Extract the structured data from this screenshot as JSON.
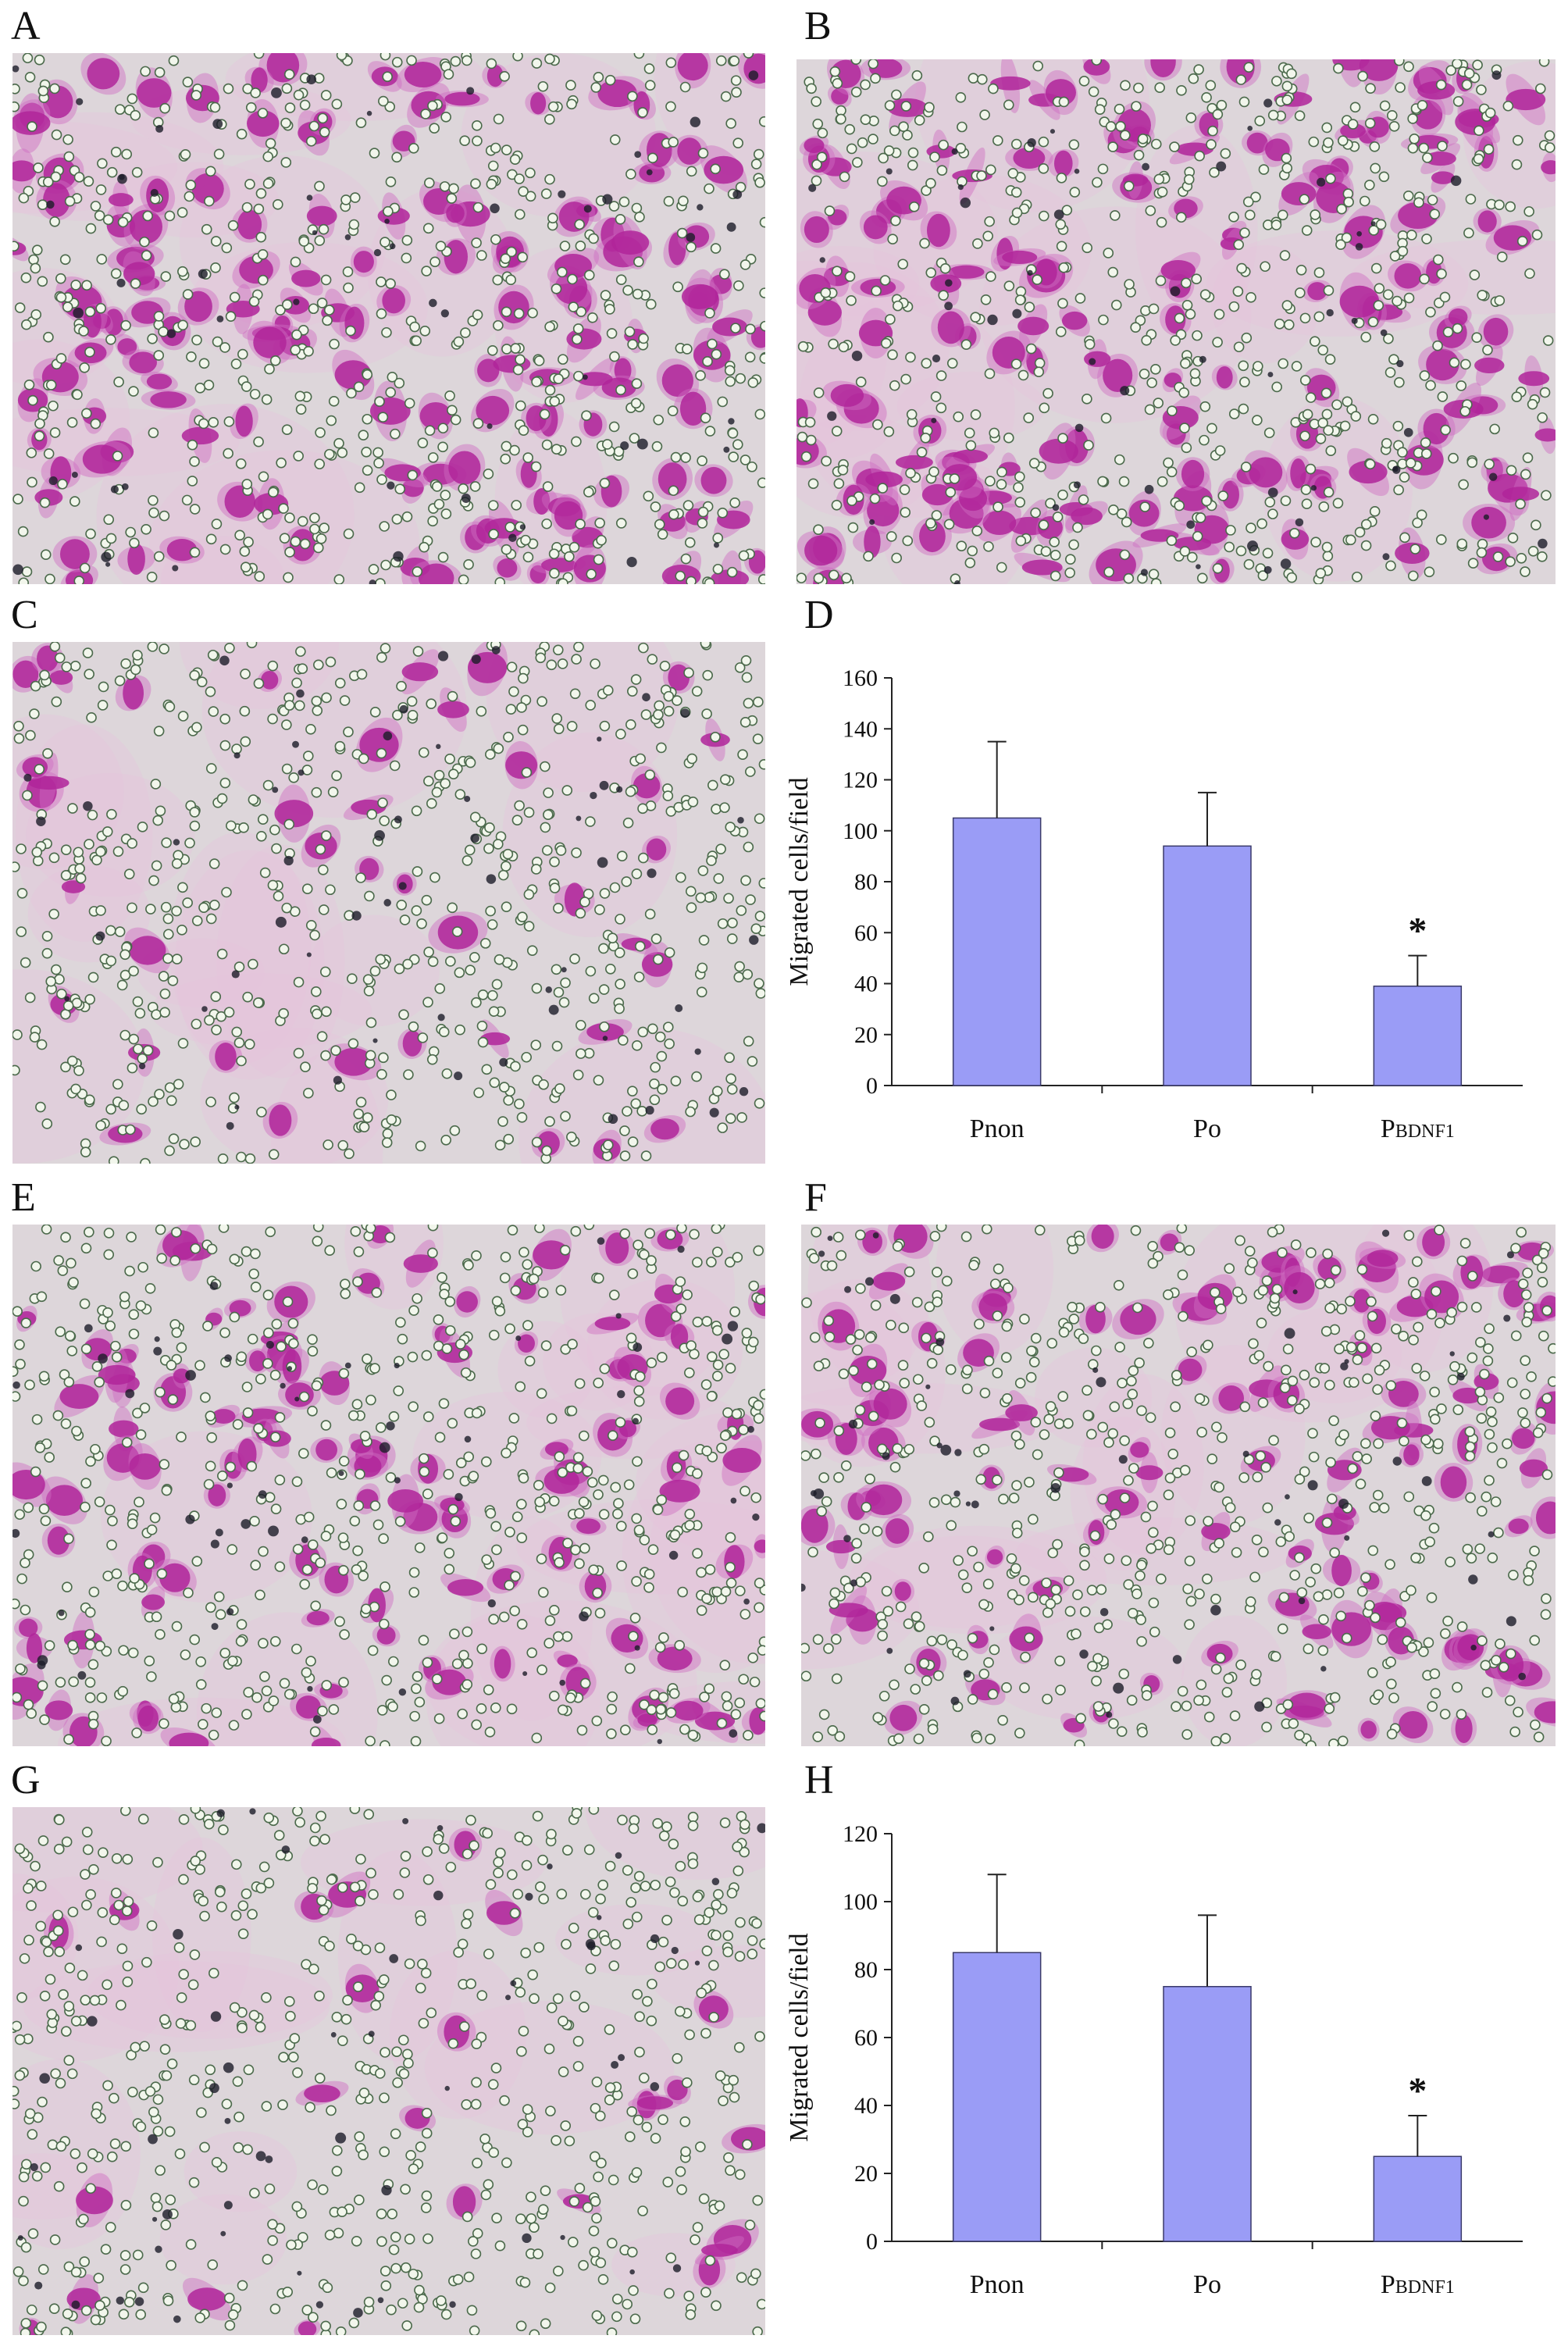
{
  "panels": {
    "A": {
      "letter": "A"
    },
    "B": {
      "letter": "B"
    },
    "C": {
      "letter": "C"
    },
    "D": {
      "letter": "D"
    },
    "E": {
      "letter": "E"
    },
    "F": {
      "letter": "F"
    },
    "G": {
      "letter": "G"
    },
    "H": {
      "letter": "H"
    }
  },
  "micrographs": [
    {
      "panel": "A",
      "cells": 150,
      "dots": 700,
      "seed": 11
    },
    {
      "panel": "B",
      "cells": 160,
      "dots": 700,
      "seed": 23
    },
    {
      "panel": "C",
      "cells": 40,
      "dots": 700,
      "seed": 37
    },
    {
      "panel": "E",
      "cells": 110,
      "dots": 700,
      "seed": 41
    },
    {
      "panel": "F",
      "cells": 110,
      "dots": 700,
      "seed": 53
    },
    {
      "panel": "G",
      "cells": 25,
      "dots": 700,
      "seed": 67
    }
  ],
  "colors": {
    "bar_fill": "#9a9cf6",
    "bar_stroke": "#3a3a6a",
    "axis": "#222222",
    "stain": "#b0259a",
    "background": "#ddd6da",
    "pore": "#f2f6ec"
  },
  "chart_data": [
    {
      "panel": "D",
      "type": "bar",
      "categories": [
        "Pnon",
        "Po",
        "PBDNF1"
      ],
      "category_labels": [
        {
          "main": "Pnon",
          "sub": ""
        },
        {
          "main": "Po",
          "sub": ""
        },
        {
          "main": "P",
          "sub": "BDNF1"
        }
      ],
      "values": [
        105,
        94,
        39
      ],
      "errors": [
        30,
        21,
        12
      ],
      "significance": [
        "",
        "",
        "*"
      ],
      "ylabel": "Migrated cells/field",
      "xlabel": "",
      "ylim": [
        0,
        160
      ],
      "yticks": [
        0,
        20,
        40,
        60,
        80,
        100,
        120,
        140,
        160
      ],
      "grid": false
    },
    {
      "panel": "H",
      "type": "bar",
      "categories": [
        "Pnon",
        "Po",
        "PBDNF1"
      ],
      "category_labels": [
        {
          "main": "Pnon",
          "sub": ""
        },
        {
          "main": "Po",
          "sub": ""
        },
        {
          "main": "P",
          "sub": "BDNF1"
        }
      ],
      "values": [
        85,
        75,
        25
      ],
      "errors": [
        23,
        21,
        12
      ],
      "significance": [
        "",
        "",
        "*"
      ],
      "ylabel": "Migrated cells/field",
      "xlabel": "",
      "ylim": [
        0,
        120
      ],
      "yticks": [
        0,
        20,
        40,
        60,
        80,
        100,
        120
      ],
      "grid": false
    }
  ]
}
